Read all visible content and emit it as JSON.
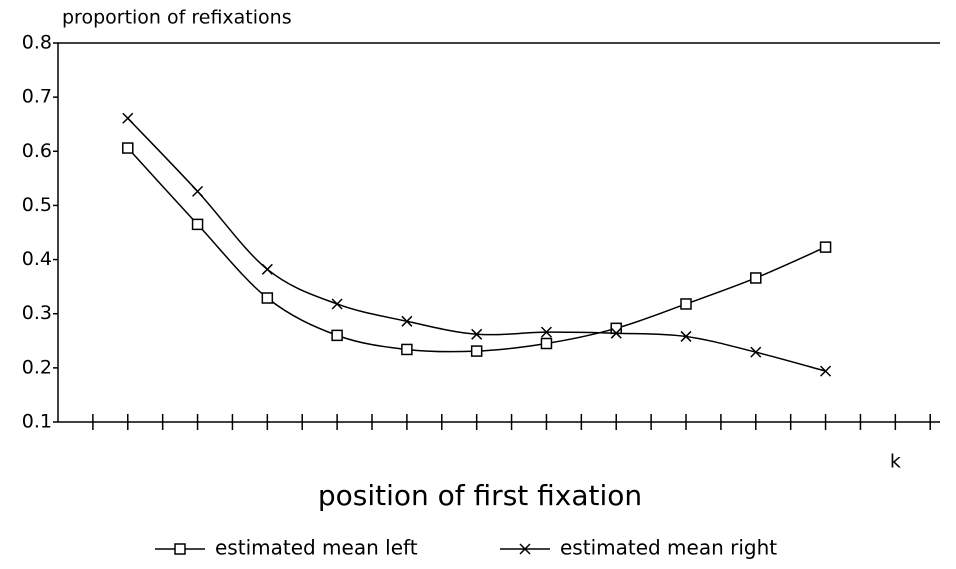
{
  "chart_data": {
    "type": "line",
    "title": "proportion of refixations",
    "xlabel": "position of first fixation",
    "x": [
      1,
      2,
      3,
      4,
      5,
      6,
      7,
      8,
      9,
      10,
      11
    ],
    "series": [
      {
        "name": "estimated mean left",
        "color": "#000000",
        "marker": "square",
        "values": [
          0.606,
          0.465,
          0.329,
          0.26,
          0.234,
          0.231,
          0.245,
          0.273,
          0.318,
          0.366,
          0.423
        ]
      },
      {
        "name": "estimated mean right",
        "color": "#000000",
        "marker": "x",
        "values": [
          0.661,
          0.526,
          0.382,
          0.318,
          0.286,
          0.262,
          0.266,
          0.264,
          0.258,
          0.229,
          0.194
        ]
      }
    ],
    "xlim": [
      0,
      12.64
    ],
    "xticks": [
      0.5,
      1,
      1.5,
      2,
      2.5,
      3,
      3.5,
      4,
      4.5,
      5,
      5.5,
      6,
      6.5,
      7,
      7.5,
      8,
      8.5,
      9,
      9.5,
      10,
      10.5,
      11,
      11.5,
      12,
      12.5
    ],
    "ylim": [
      0.1,
      0.8
    ],
    "yticks": [
      0.1,
      0.2,
      0.3,
      0.4,
      0.5,
      0.6,
      0.7,
      0.8
    ],
    "annotations": [
      {
        "text": "k",
        "x": 12
      }
    ],
    "legend": "bottom"
  }
}
